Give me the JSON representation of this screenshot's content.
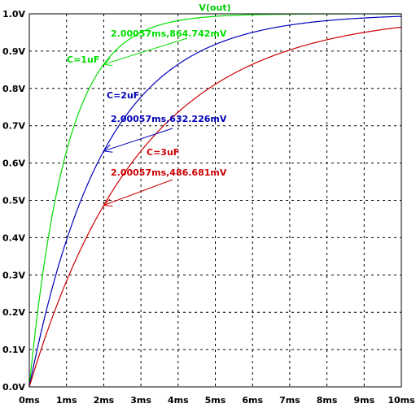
{
  "chart_data": {
    "type": "line",
    "title": "V(out)",
    "title_color": "#00cc00",
    "xlabel": "",
    "ylabel": "",
    "xlim": [
      0,
      10
    ],
    "ylim": [
      0,
      1
    ],
    "grid": true,
    "x_ticks": [
      "0ms",
      "1ms",
      "2ms",
      "3ms",
      "4ms",
      "5ms",
      "6ms",
      "7ms",
      "8ms",
      "9ms",
      "10ms"
    ],
    "y_ticks": [
      "0.0V",
      "0.1V",
      "0.2V",
      "0.3V",
      "0.4V",
      "0.5V",
      "0.6V",
      "0.7V",
      "0.8V",
      "0.9V",
      "1.0V"
    ],
    "series": [
      {
        "name": "C=1uF",
        "color": "#00dd00",
        "tau_ms": 1,
        "x": [
          0,
          0.25,
          0.5,
          0.75,
          1,
          1.5,
          2,
          2.5,
          3,
          4,
          5,
          6,
          7,
          8,
          9,
          10
        ],
        "y": [
          0,
          0.221,
          0.393,
          0.528,
          0.632,
          0.777,
          0.865,
          0.918,
          0.95,
          0.982,
          0.993,
          0.998,
          0.999,
          1.0,
          1.0,
          1.0
        ],
        "marker": {
          "x": 2.00057,
          "y": 0.864742,
          "label": "2.00057ms,864.742mV"
        }
      },
      {
        "name": "C=2uF",
        "color": "#0000bb",
        "tau_ms": 2,
        "x": [
          0,
          0.5,
          1,
          1.5,
          2,
          3,
          4,
          5,
          6,
          7,
          8,
          9,
          10
        ],
        "y": [
          0,
          0.221,
          0.393,
          0.528,
          0.632,
          0.777,
          0.865,
          0.918,
          0.95,
          0.97,
          0.982,
          0.989,
          0.993
        ],
        "marker": {
          "x": 2.00057,
          "y": 0.632226,
          "label": "2.00057ms,632.226mV"
        }
      },
      {
        "name": "C=3uF",
        "color": "#cc0000",
        "tau_ms": 3,
        "x": [
          0,
          0.5,
          1,
          1.5,
          2,
          3,
          4,
          5,
          6,
          7,
          8,
          9,
          10
        ],
        "y": [
          0,
          0.154,
          0.283,
          0.393,
          0.487,
          0.632,
          0.736,
          0.811,
          0.865,
          0.903,
          0.931,
          0.95,
          0.964
        ],
        "marker": {
          "x": 2.00057,
          "y": 0.486681,
          "label": "2.00057ms,486.681mV"
        }
      }
    ]
  }
}
